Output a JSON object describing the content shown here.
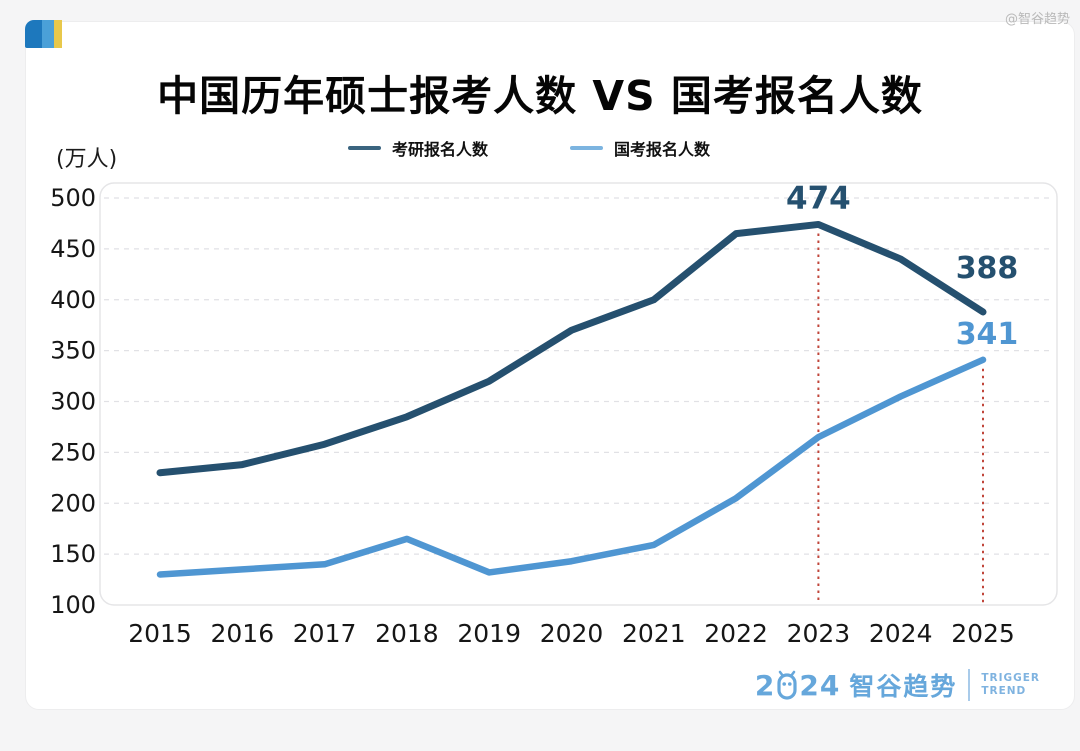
{
  "page": {
    "watermark": "@智谷趋势",
    "title": "中国历年硕士报考人数 VS 国考报名人数",
    "unit_label": "(万人)"
  },
  "legend": [
    {
      "label": "考研报名人数",
      "color": "#3a647f"
    },
    {
      "label": "国考报名人数",
      "color": "#7cb4e0"
    }
  ],
  "chart_data": {
    "type": "line",
    "title": "中国历年硕士报考人数 VS 国考报名人数",
    "xlabel": "",
    "ylabel": "(万人)",
    "ylim": [
      100,
      500
    ],
    "ytick_step": 50,
    "grid": "horizontal-dashed",
    "legend_position": "top-center",
    "x": [
      2015,
      2016,
      2017,
      2018,
      2019,
      2020,
      2021,
      2022,
      2023,
      2024,
      2025
    ],
    "series": [
      {
        "name": "考研报名人数",
        "color": "#25506f",
        "line_width": 7,
        "values": [
          230,
          238,
          258,
          285,
          320,
          370,
          400,
          465,
          474,
          440,
          388
        ]
      },
      {
        "name": "国考报名人数",
        "color": "#4f96d2",
        "line_width": 6.5,
        "values": [
          130,
          135,
          140,
          165,
          132,
          143,
          159,
          205,
          265,
          305,
          341
        ]
      }
    ],
    "annotations": [
      {
        "series": 0,
        "year": 2023,
        "text": "474",
        "font_size": 31
      },
      {
        "series": 0,
        "year": 2025,
        "text": "388",
        "font_size": 30
      },
      {
        "series": 1,
        "year": 2025,
        "text": "341",
        "font_size": 30
      }
    ],
    "reference_lines": [
      {
        "year": 2023,
        "top_value": 474,
        "style": "dotted",
        "color": "#c0453a"
      },
      {
        "year": 2025,
        "top_value": 341,
        "style": "dotted",
        "color": "#c0453a"
      }
    ]
  },
  "footer": {
    "year_prefix": "2",
    "year_suffix": "24",
    "brand": "智谷趋势",
    "divider": "|",
    "tagline_line1": "TRIGGER",
    "tagline_line2": "TREND"
  }
}
